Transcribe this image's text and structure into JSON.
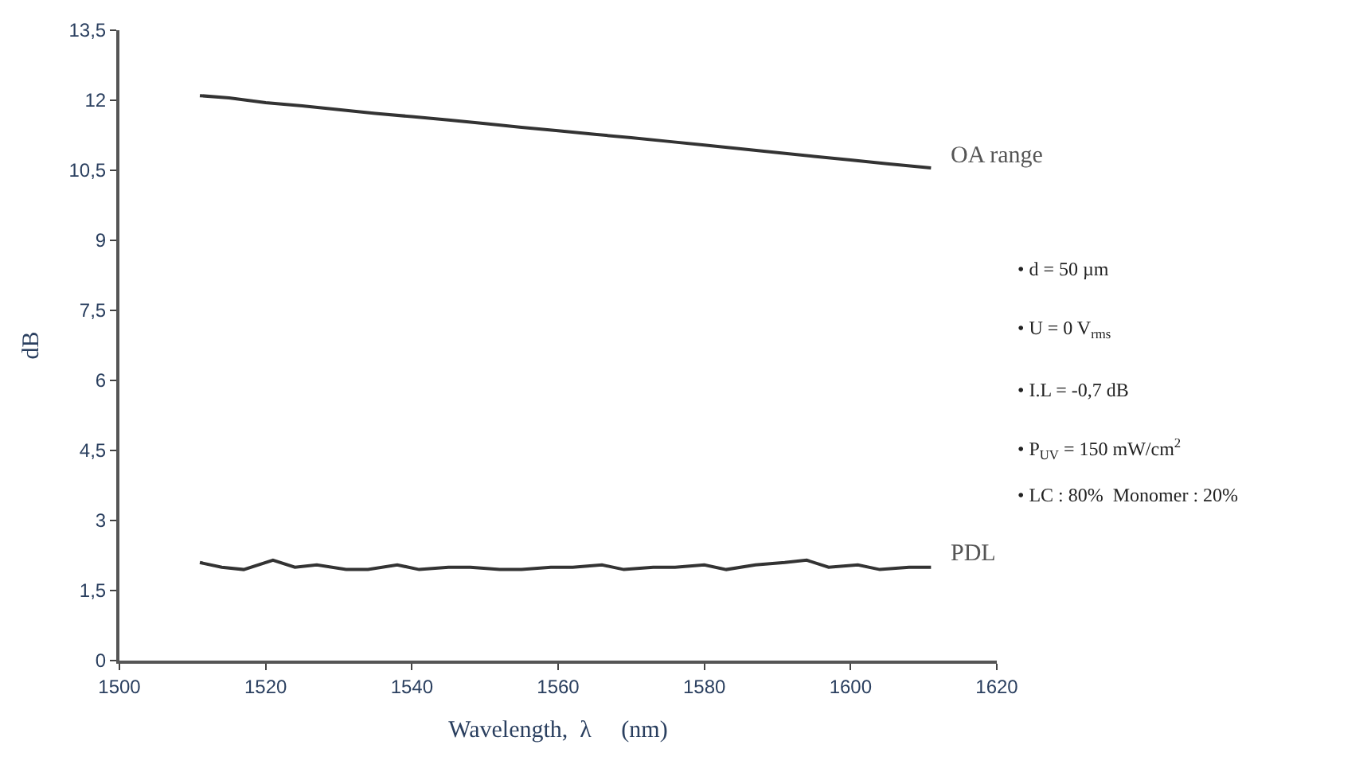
{
  "chart_data": {
    "type": "line",
    "xlabel": "Wavelength,  λ     (nm)",
    "ylabel": "dB",
    "xlim": [
      1500,
      1620
    ],
    "xticks": [
      1500,
      1520,
      1540,
      1560,
      1580,
      1600,
      1620
    ],
    "ylim": [
      0,
      13.5
    ],
    "yticks": [
      0,
      {
        "value": 1.5,
        "label": "1,5"
      },
      3,
      {
        "value": 4.5,
        "label": "4,5"
      },
      6,
      {
        "value": 7.5,
        "label": "7,5"
      },
      9,
      {
        "value": 10.5,
        "label": "10,5"
      },
      12,
      {
        "value": 13.5,
        "label": "13,5"
      }
    ],
    "legend": false,
    "marker": "none",
    "line_style": "solid",
    "series": [
      {
        "name": "OA range",
        "color": "#333333",
        "x": [
          1511,
          1515,
          1520,
          1525,
          1530,
          1535,
          1540,
          1545,
          1550,
          1555,
          1560,
          1565,
          1570,
          1575,
          1580,
          1585,
          1590,
          1595,
          1600,
          1605,
          1611
        ],
        "values": [
          12.1,
          12.05,
          11.95,
          11.88,
          11.8,
          11.72,
          11.65,
          11.58,
          11.5,
          11.42,
          11.35,
          11.27,
          11.2,
          11.12,
          11.04,
          10.96,
          10.88,
          10.8,
          10.72,
          10.64,
          10.55
        ]
      },
      {
        "name": "PDL",
        "color": "#333333",
        "x": [
          1511,
          1514,
          1517,
          1521,
          1524,
          1527,
          1531,
          1534,
          1538,
          1541,
          1545,
          1548,
          1552,
          1555,
          1559,
          1562,
          1566,
          1569,
          1573,
          1576,
          1580,
          1583,
          1587,
          1591,
          1594,
          1597,
          1601,
          1604,
          1608,
          1611
        ],
        "values": [
          2.1,
          2.0,
          1.95,
          2.15,
          2.0,
          2.05,
          1.95,
          1.95,
          2.05,
          1.95,
          2.0,
          2.0,
          1.95,
          1.95,
          2.0,
          2.0,
          2.05,
          1.95,
          2.0,
          2.0,
          2.05,
          1.95,
          2.05,
          2.1,
          2.15,
          2.0,
          2.05,
          1.95,
          2.0,
          2.0
        ]
      }
    ],
    "annotations": [
      "• d = 50 µm",
      "• U = 0 V$_{rms}$",
      "• I.L = -0,7 dB",
      "• P$_{UV}$ = 150 mW/cm$^{2}$",
      "• LC : 80%  Monomer : 20%"
    ]
  }
}
